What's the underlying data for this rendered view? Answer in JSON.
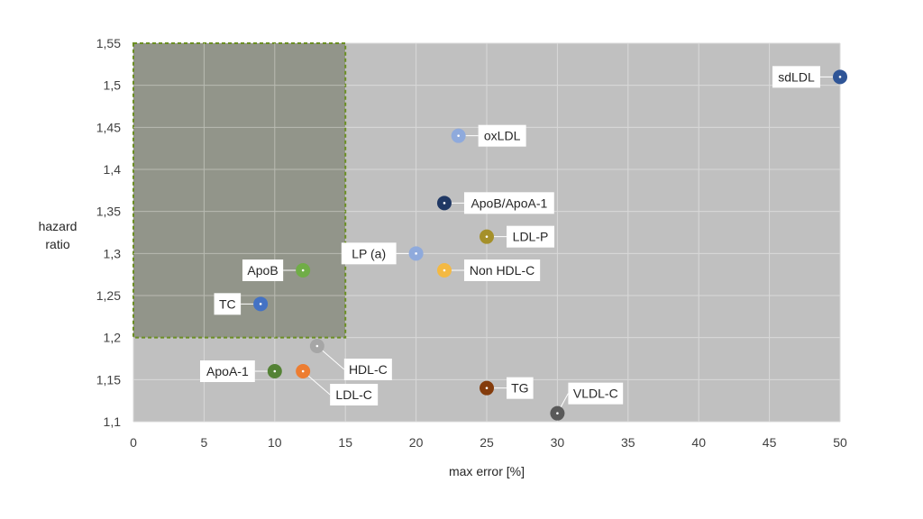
{
  "chart_data": {
    "type": "scatter",
    "xlabel": "max error [%]",
    "ylabel": [
      "hazard",
      "ratio"
    ],
    "xlim": [
      0,
      50
    ],
    "ylim": [
      1.1,
      1.55
    ],
    "x_ticks": [
      0,
      5,
      10,
      15,
      20,
      25,
      30,
      35,
      40,
      45,
      50
    ],
    "x_tick_labels": [
      "0",
      "5",
      "10",
      "15",
      "20",
      "25",
      "30",
      "35",
      "40",
      "45",
      "50"
    ],
    "y_ticks": [
      1.1,
      1.15,
      1.2,
      1.25,
      1.3,
      1.35,
      1.4,
      1.45,
      1.5,
      1.55
    ],
    "y_tick_labels": [
      "1,1",
      "1,15",
      "1,2",
      "1,25",
      "1,3",
      "1,35",
      "1,4",
      "1,45",
      "1,5",
      "1,55"
    ],
    "grid": true,
    "highlight_region": {
      "x": [
        0,
        15
      ],
      "y": [
        1.2,
        1.55
      ],
      "fill": "#8a8d80",
      "border": "#6b8e23"
    },
    "points": [
      {
        "label": "sdLDL",
        "x": 50,
        "y": 1.51,
        "color": "#2f5597",
        "label_side": "left"
      },
      {
        "label": "oxLDL",
        "x": 23,
        "y": 1.44,
        "color": "#8faadc",
        "label_side": "right"
      },
      {
        "label": "ApoB/ApoA-1",
        "x": 22,
        "y": 1.36,
        "color": "#203864",
        "label_side": "right"
      },
      {
        "label": "LDL-P",
        "x": 25,
        "y": 1.32,
        "color": "#a5902a",
        "label_side": "right"
      },
      {
        "label": "LP (a)",
        "x": 20,
        "y": 1.3,
        "color": "#8faadc",
        "label_side": "left"
      },
      {
        "label": "Non HDL-C",
        "x": 22,
        "y": 1.28,
        "color": "#f4b942",
        "label_side": "right"
      },
      {
        "label": "ApoB",
        "x": 12,
        "y": 1.28,
        "color": "#70ad47",
        "label_side": "left"
      },
      {
        "label": "TC",
        "x": 9,
        "y": 1.24,
        "color": "#4472c4",
        "label_side": "left"
      },
      {
        "label": "HDL-C",
        "x": 13,
        "y": 1.19,
        "color": "#a6a6a6",
        "label_side": "below-right"
      },
      {
        "label": "ApoA-1",
        "x": 10,
        "y": 1.16,
        "color": "#548235",
        "label_side": "left"
      },
      {
        "label": "LDL-C",
        "x": 12,
        "y": 1.16,
        "color": "#ed7d31",
        "label_side": "below-right"
      },
      {
        "label": "TG",
        "x": 25,
        "y": 1.14,
        "color": "#843c0c",
        "label_side": "right"
      },
      {
        "label": "VLDL-C",
        "x": 30,
        "y": 1.11,
        "color": "#595959",
        "label_side": "above-right"
      }
    ],
    "colors": {
      "plot_background": "#c0c0c0",
      "gridline": "#d9d9d9",
      "label_box": "#ffffff"
    }
  }
}
